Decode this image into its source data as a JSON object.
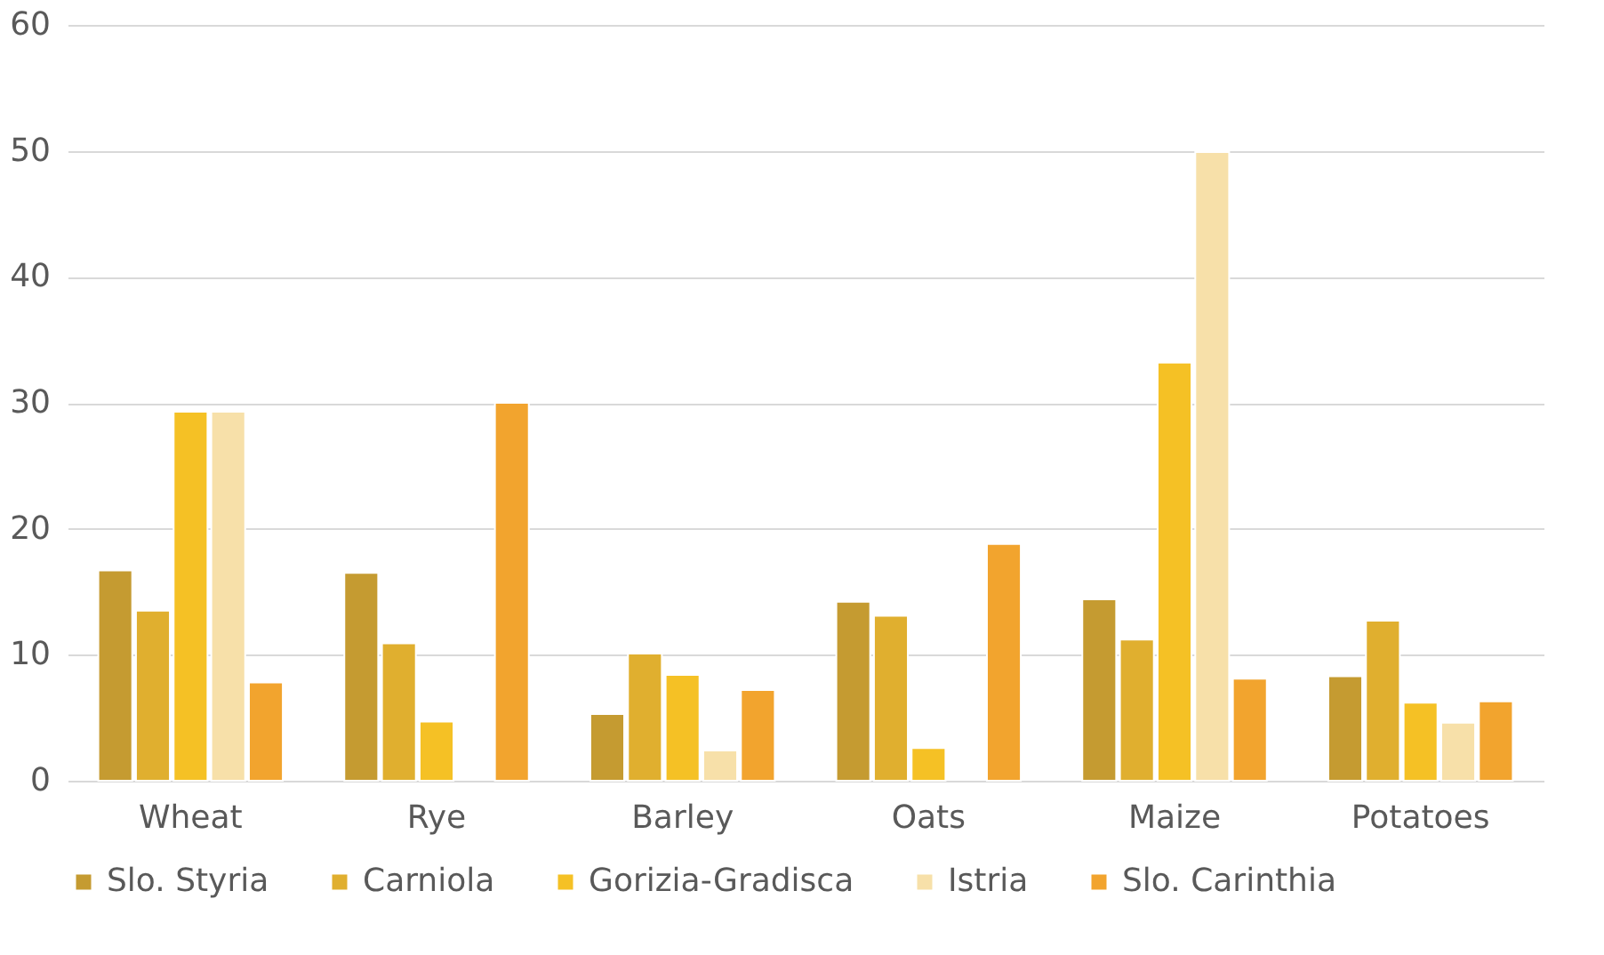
{
  "chart_data": {
    "type": "bar",
    "categories": [
      "Wheat",
      "Rye",
      "Barley",
      "Oats",
      "Maize",
      "Potatoes"
    ],
    "series": [
      {
        "name": "Slo. Styria",
        "color": "#c59b31",
        "values": [
          16.7,
          16.5,
          5.3,
          14.2,
          14.4,
          8.3
        ]
      },
      {
        "name": "Carniola",
        "color": "#e0af2f",
        "values": [
          13.5,
          10.9,
          10.1,
          13.1,
          11.2,
          12.7
        ]
      },
      {
        "name": "Gorizia-Gradisca",
        "color": "#f5c125",
        "values": [
          29.3,
          4.7,
          8.4,
          2.6,
          33.2,
          6.2
        ]
      },
      {
        "name": "Istria",
        "color": "#f7e0a9",
        "values": [
          29.3,
          null,
          2.4,
          null,
          49.9,
          4.6
        ]
      },
      {
        "name": "Slo. Carinthia",
        "color": "#f2a42e",
        "values": [
          7.8,
          30.0,
          7.2,
          18.8,
          8.1,
          6.3
        ]
      }
    ],
    "ylim": [
      0,
      60
    ],
    "yticks": [
      0,
      10,
      20,
      30,
      40,
      50,
      60
    ],
    "grid": "y",
    "legend": "bottom"
  }
}
